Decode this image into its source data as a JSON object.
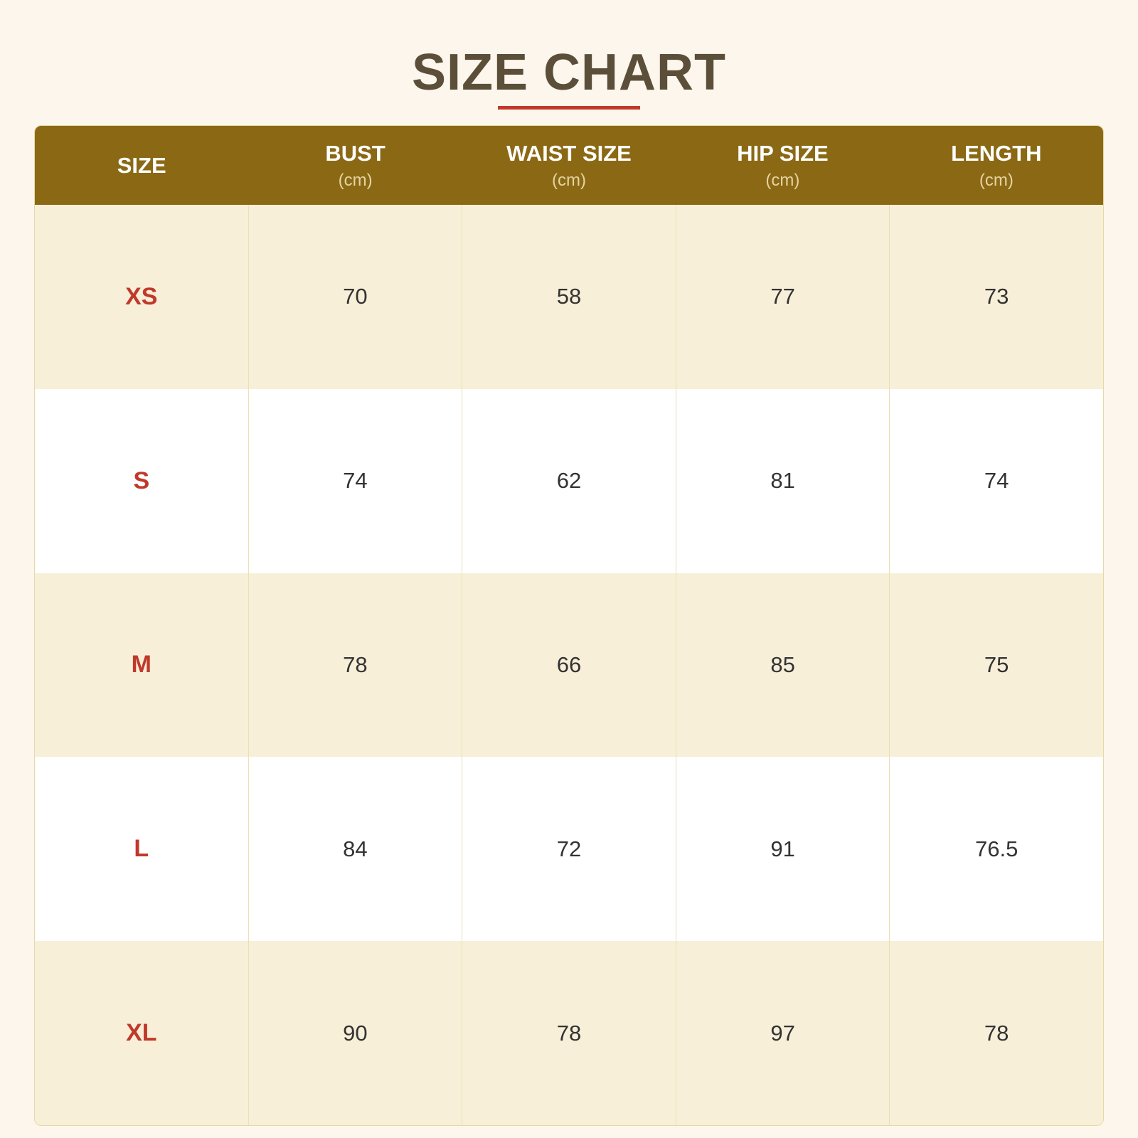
{
  "title": "SIZE CHART",
  "colors": {
    "header_bg": "#8b6914",
    "accent": "#c0392b",
    "title": "#5c4f3a",
    "row_alt": "#f8efd9"
  },
  "headers": [
    {
      "label": "SIZE",
      "unit": ""
    },
    {
      "label": "BUST",
      "unit": "(cm)"
    },
    {
      "label": "WAIST SIZE",
      "unit": "(cm)"
    },
    {
      "label": "HIP SIZE",
      "unit": "(cm)"
    },
    {
      "label": "LENGTH",
      "unit": "(cm)"
    }
  ],
  "rows": [
    [
      "XS",
      "70",
      "58",
      "77",
      "73"
    ],
    [
      "S",
      "74",
      "62",
      "81",
      "74"
    ],
    [
      "M",
      "78",
      "66",
      "85",
      "75"
    ],
    [
      "L",
      "84",
      "72",
      "91",
      "76.5"
    ],
    [
      "XL",
      "90",
      "78",
      "97",
      "78"
    ]
  ]
}
